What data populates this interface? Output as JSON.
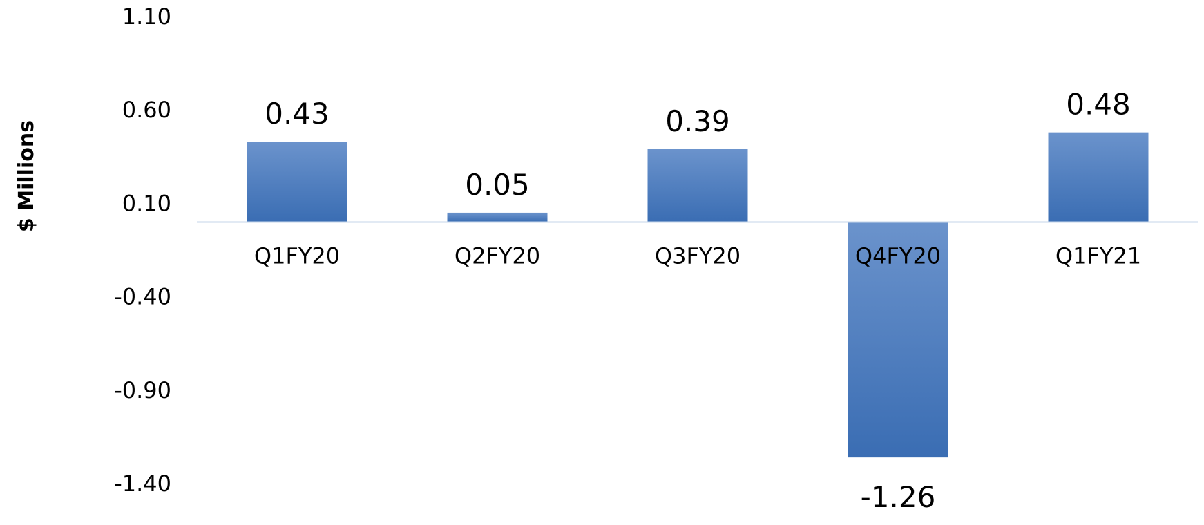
{
  "chart_data": {
    "type": "bar",
    "title": "",
    "xlabel": "",
    "ylabel": "$   Millions",
    "categories": [
      "Q1FY20",
      "Q2FY20",
      "Q3FY20",
      "Q4FY20",
      "Q1FY21"
    ],
    "values": [
      0.43,
      0.05,
      0.39,
      -1.26,
      0.48
    ],
    "data_labels": [
      "0.43",
      "0.05",
      "0.39",
      "-1.26",
      "0.48"
    ],
    "ylim": [
      -1.4,
      1.1
    ],
    "yticks": [
      1.1,
      0.6,
      0.1,
      -0.4,
      -0.9,
      -1.4
    ],
    "ytick_labels": [
      "1.10",
      "0.60",
      "0.10",
      "-0.40",
      "-0.90",
      "-1.40"
    ],
    "grid": false,
    "colors": {
      "bar_top": "#6b93cc",
      "bar_bottom": "#3a6db3",
      "baseline": "#c5d6ea"
    }
  }
}
